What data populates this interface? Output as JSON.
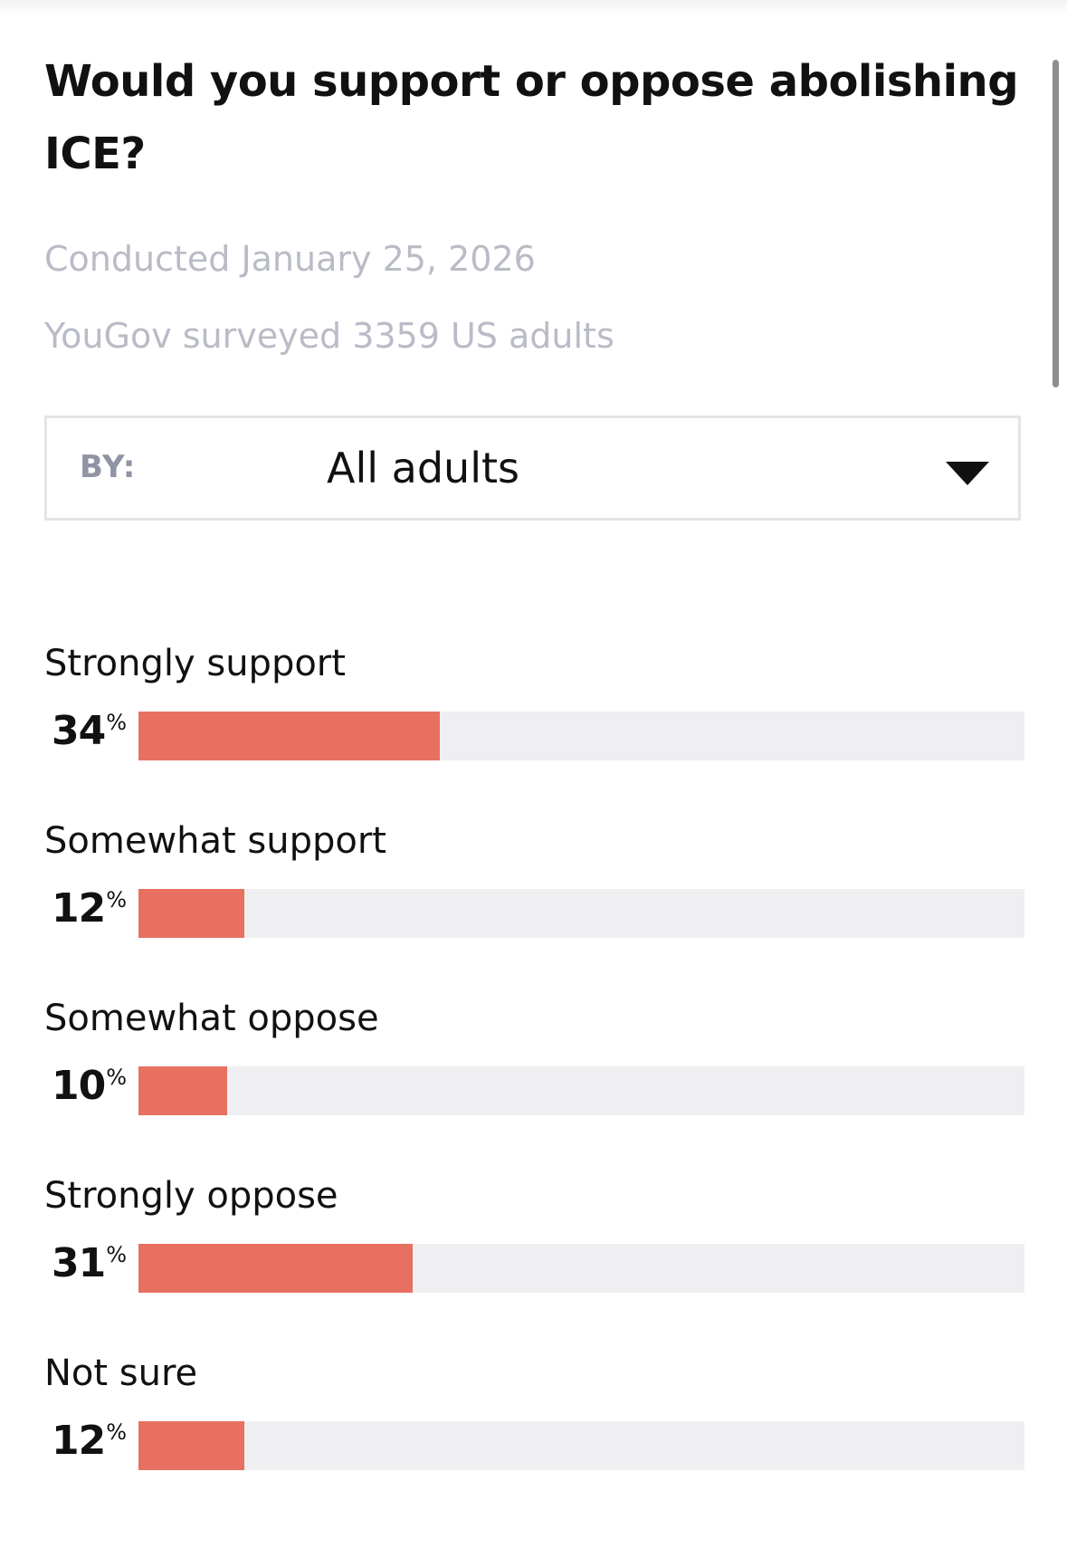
{
  "poll": {
    "question": "Would you support or oppose abolishing ICE?",
    "conducted": "Conducted January 25, 2026",
    "surveyed": "YouGov surveyed 3359 US adults"
  },
  "filter": {
    "by_label": "BY:",
    "selected": "All adults",
    "icon": "caret-down-icon"
  },
  "colors": {
    "bar_fill": "#e87060",
    "bar_track": "#efeff1",
    "meta_text": "#b9bcc6"
  },
  "chart_data": {
    "type": "bar",
    "orientation": "horizontal",
    "unit": "%",
    "xlim": [
      0,
      100
    ],
    "categories": [
      "Strongly support",
      "Somewhat support",
      "Somewhat oppose",
      "Strongly oppose",
      "Not sure"
    ],
    "values": [
      34,
      12,
      10,
      31,
      12
    ]
  },
  "responses": [
    {
      "label": "Strongly support",
      "value": "34",
      "pct_sign": "%"
    },
    {
      "label": "Somewhat support",
      "value": "12",
      "pct_sign": "%"
    },
    {
      "label": "Somewhat oppose",
      "value": "10",
      "pct_sign": "%"
    },
    {
      "label": "Strongly oppose",
      "value": "31",
      "pct_sign": "%"
    },
    {
      "label": "Not sure",
      "value": "12",
      "pct_sign": "%"
    }
  ]
}
